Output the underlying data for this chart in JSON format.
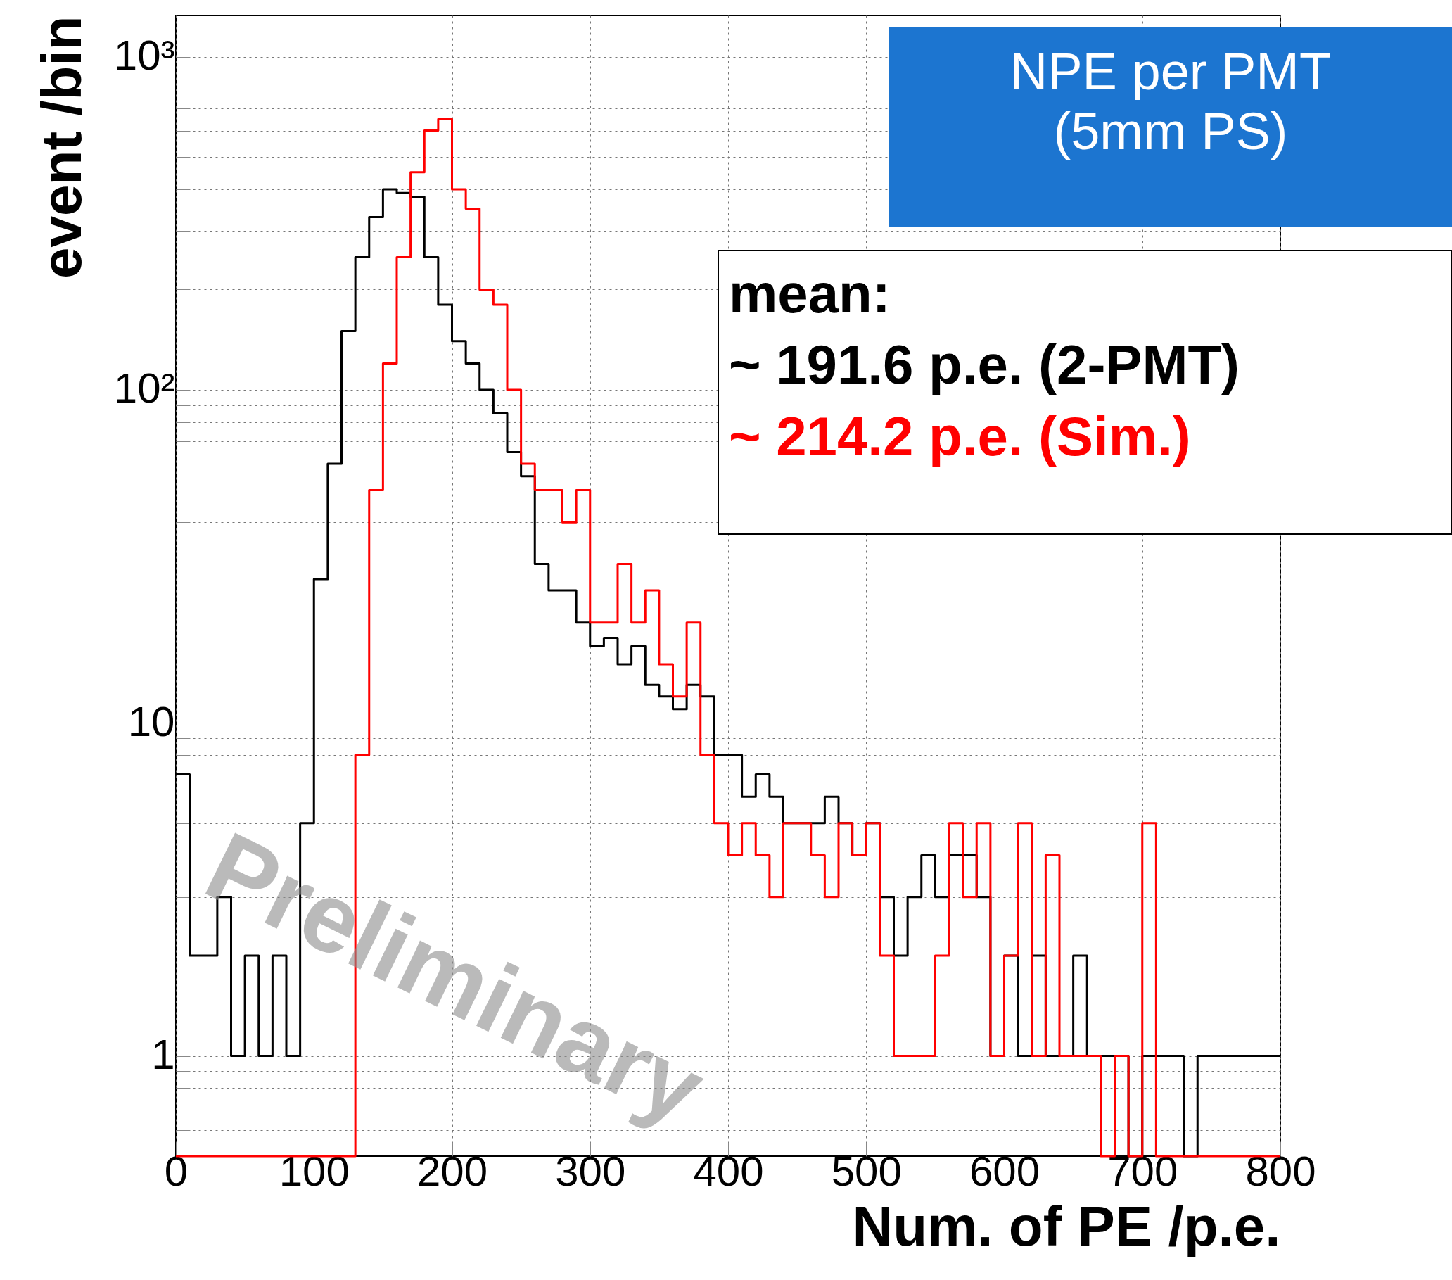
{
  "chart_data": {
    "type": "histogram",
    "title": "NPE per PMT",
    "subtitle": "(5mm PS)",
    "xlabel": "Num. of PE /p.e.",
    "ylabel": "event /bin",
    "legend_title": "mean:",
    "legend": "top right",
    "log": true,
    "grid": true,
    "line_style": "solid",
    "annotations": [
      "Preliminary"
    ],
    "xlim": [
      0,
      800
    ],
    "xticks": [
      0,
      100,
      200,
      300,
      400,
      500,
      600,
      700,
      800
    ],
    "ylim": [
      0.5,
      1330
    ],
    "yticks": [
      {
        "value": 0.6,
        "label": null
      },
      {
        "value": 0.7,
        "label": null
      },
      {
        "value": 0.8,
        "label": null
      },
      {
        "value": 0.9,
        "label": null
      },
      1,
      {
        "value": 2,
        "label": null
      },
      {
        "value": 3,
        "label": null
      },
      {
        "value": 4,
        "label": null
      },
      {
        "value": 5,
        "label": null
      },
      {
        "value": 6,
        "label": null
      },
      {
        "value": 7,
        "label": null
      },
      {
        "value": 8,
        "label": null
      },
      {
        "value": 9,
        "label": null
      },
      10,
      {
        "value": 20,
        "label": null
      },
      {
        "value": 30,
        "label": null
      },
      {
        "value": 40,
        "label": null
      },
      {
        "value": 50,
        "label": null
      },
      {
        "value": 60,
        "label": null
      },
      {
        "value": 70,
        "label": null
      },
      {
        "value": 80,
        "label": null
      },
      {
        "value": 90,
        "label": null
      },
      {
        "value": 100,
        "label": "10²"
      },
      {
        "value": 200,
        "label": null
      },
      {
        "value": 300,
        "label": null
      },
      {
        "value": 400,
        "label": null
      },
      {
        "value": 500,
        "label": null
      },
      {
        "value": 600,
        "label": null
      },
      {
        "value": 700,
        "label": null
      },
      {
        "value": 800,
        "label": null
      },
      {
        "value": 900,
        "label": null
      },
      {
        "value": 1000,
        "label": "10³"
      }
    ],
    "bins": [
      0,
      10,
      20,
      30,
      40,
      50,
      60,
      70,
      80,
      90,
      100,
      110,
      120,
      130,
      140,
      150,
      160,
      170,
      180,
      190,
      200,
      210,
      220,
      230,
      240,
      250,
      260,
      270,
      280,
      290,
      300,
      310,
      320,
      330,
      340,
      350,
      360,
      370,
      380,
      390,
      400,
      410,
      420,
      430,
      440,
      450,
      460,
      470,
      480,
      490,
      500,
      510,
      520,
      530,
      540,
      550,
      560,
      570,
      580,
      590,
      600,
      610,
      620,
      630,
      640,
      650,
      660,
      670,
      680,
      690,
      700,
      710,
      720,
      730,
      740,
      750,
      760,
      770,
      780,
      790,
      800
    ],
    "series": [
      {
        "name": "~ 191.6 p.e. (2-PMT)",
        "color": "#000000",
        "values": [
          7,
          2,
          2,
          3,
          1,
          2,
          1,
          2,
          1,
          5,
          27,
          60,
          150,
          250,
          330,
          400,
          390,
          380,
          250,
          180,
          140,
          120,
          100,
          85,
          65,
          55,
          30,
          25,
          25,
          20,
          17,
          18,
          15,
          17,
          13,
          12,
          11,
          13,
          12,
          8,
          8,
          6,
          7,
          6,
          5,
          5,
          5,
          6,
          5,
          4,
          5,
          3,
          2,
          3,
          4,
          3,
          4,
          4,
          3,
          1,
          2,
          1,
          2,
          1,
          1,
          2,
          1,
          1,
          1,
          null,
          1,
          1,
          1,
          null,
          1,
          1,
          1,
          1,
          1,
          1
        ]
      },
      {
        "name": "~ 214.2 p.e. (Sim.)",
        "color": "#ff0000",
        "values": [
          null,
          null,
          null,
          null,
          null,
          null,
          null,
          null,
          null,
          null,
          null,
          null,
          null,
          8,
          50,
          120,
          250,
          450,
          600,
          650,
          400,
          350,
          200,
          180,
          100,
          60,
          50,
          50,
          40,
          50,
          20,
          20,
          30,
          20,
          25,
          15,
          12,
          20,
          8,
          5,
          4,
          5,
          4,
          3,
          5,
          5,
          4,
          3,
          5,
          4,
          5,
          2,
          1,
          1,
          1,
          2,
          5,
          3,
          5,
          1,
          2,
          5,
          1,
          4,
          1,
          1,
          1,
          null,
          1,
          null,
          5,
          null,
          null,
          null,
          null,
          null,
          null,
          null,
          null,
          null
        ]
      }
    ]
  }
}
